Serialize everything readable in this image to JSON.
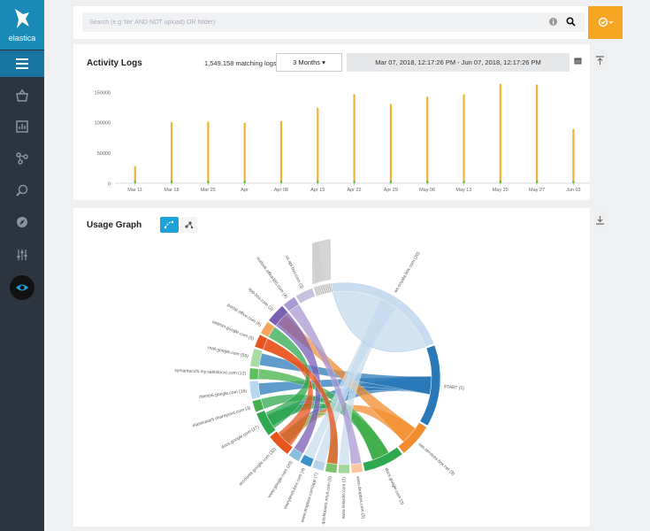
{
  "app": {
    "name": "elastica"
  },
  "search": {
    "placeholder": "Search (e.g 'file' AND NOT upload) OR folder)"
  },
  "activity": {
    "title": "Activity Logs",
    "matching": "1,549,158 matching logs",
    "range_label": "3 Months ▾",
    "date_range": "Mar 07, 2018, 12:17:26 PM - Jun 07, 2018, 12:17:26 PM"
  },
  "usage": {
    "title": "Usage Graph"
  },
  "colors": {
    "accent": "#1a8ab8",
    "alert": "#f5a623",
    "bar": "#f2b233",
    "bar_base": "#6cc04a"
  },
  "icons": [
    "basket-icon",
    "dashboard-icon",
    "share-icon",
    "search-zoom-icon",
    "compass-icon",
    "sliders-icon",
    "eye-icon"
  ],
  "chart_data": {
    "type": "bar",
    "categories": [
      "Mar 11",
      "Mar 18",
      "Mar 25",
      "Apr",
      "Apr 08",
      "Apr 15",
      "Apr 22",
      "Apr 29",
      "May 06",
      "May 13",
      "May 20",
      "May 27",
      "Jun 03"
    ],
    "values": [
      28000,
      100000,
      101000,
      99000,
      102000,
      124000,
      146000,
      130000,
      142000,
      146000,
      163000,
      162000,
      89000
    ],
    "yticks": [
      0,
      50000,
      100000,
      150000
    ],
    "ylim": [
      0,
      170000
    ],
    "grid": false,
    "title": "",
    "xlabel": "",
    "ylabel": ""
  },
  "chord": {
    "labels": [
      "START (5)",
      "sas.services.box.net (9)",
      "docs.google.com (3)",
      "www.dropbox.com (5)",
      "www.linkedin.com (2)",
      "quickbooks.intuit.com (5)",
      "www.dropbox.com/app (7)",
      "manytests.box.com (4)",
      "www.google.com (20)",
      "accounts.google.com (32)",
      "docs.google.com (27)",
      "elasticaae5.sharepoint.com (3)",
      "clients6.google.com (16)",
      "symanteccfs.my.salesforce.com (12)",
      "mail.google.com (59)",
      "sadmin.google.com (5)",
      "portal.office.com (6)",
      "app.box.com (3)",
      "outlook.office365.com (4)",
      "us.api.box.com (3)",
      "ws.ooyala.box.com (20)"
    ]
  }
}
